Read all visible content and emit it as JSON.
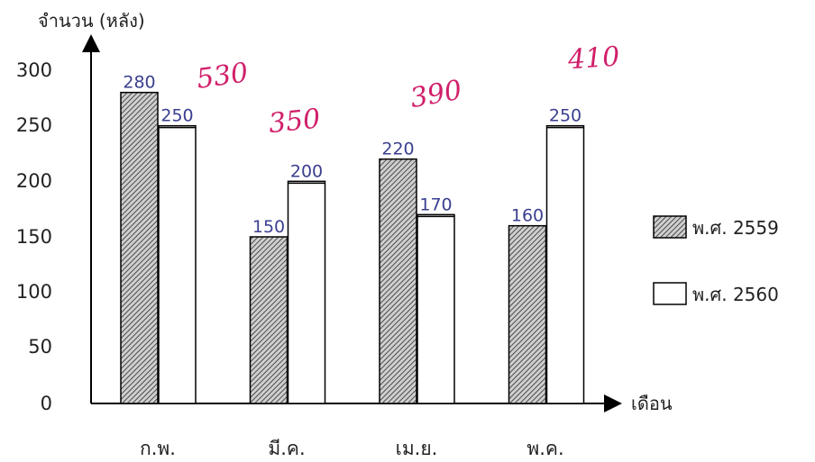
{
  "chart_data": {
    "type": "bar",
    "ylabel": "จำนวน (หลัง)",
    "xlabel": "เดือน",
    "categories": [
      "ก.พ.",
      "มี.ค.",
      "เม.ย.",
      "พ.ค."
    ],
    "yticks": [
      "300",
      "250",
      "200",
      "150",
      "100",
      "50",
      "0"
    ],
    "ylim": [
      0,
      300
    ],
    "series": [
      {
        "name": "พ.ศ. 2559",
        "values": [
          280,
          150,
          220,
          160
        ],
        "labels": [
          "280",
          "150",
          "220",
          "160"
        ],
        "pattern": "hatched"
      },
      {
        "name": "พ.ศ. 2560",
        "values": [
          250,
          200,
          170,
          250
        ],
        "labels": [
          "250",
          "200",
          "170",
          "250"
        ],
        "pattern": "white"
      }
    ],
    "legend_position": "right",
    "grid": false,
    "annotations": [
      "530",
      "350",
      "390",
      "410"
    ]
  },
  "colors": {
    "annotation": "#d0206a",
    "data_label": "#3a3f8f",
    "axis": "#000000"
  }
}
